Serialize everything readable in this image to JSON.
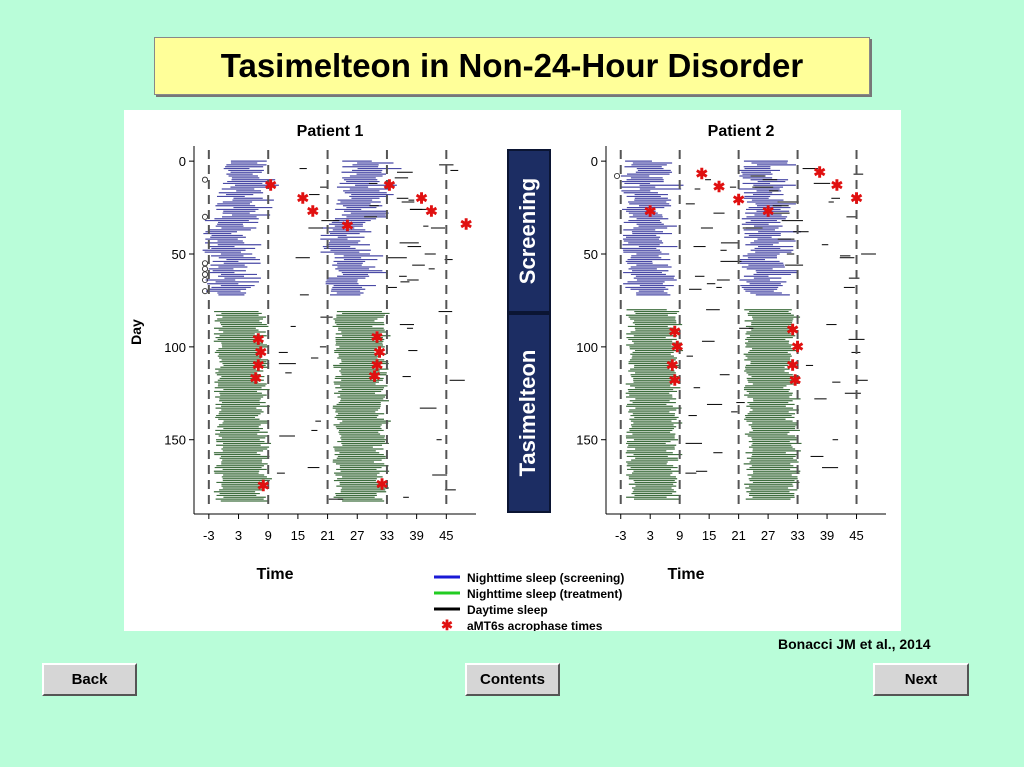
{
  "title": "Tasimelteon in Non-24-Hour Disorder",
  "citation": "Bonacci JM et al., 2014",
  "nav": {
    "back": "Back",
    "contents": "Contents",
    "next": "Next"
  },
  "colors": {
    "background": "#b9fdd9",
    "title_bg": "#ffff99",
    "screening": "#4a4aa6",
    "treatment": "#3e6e3e",
    "daytime": "#000000",
    "acrophase": "#e01010",
    "phase_label_bg": "#1c2d63"
  },
  "chart_data": [
    {
      "type": "scatter",
      "title": "Patient 1",
      "xlabel": "Time",
      "ylabel": "Day",
      "x_ticks": [
        "-3",
        "3",
        "9",
        "15",
        "21",
        "27",
        "33",
        "39",
        "45"
      ],
      "y_ticks": [
        "0",
        "50",
        "100",
        "150"
      ],
      "xlim": [
        -3,
        48
      ],
      "ylim": [
        0,
        185
      ],
      "screening_days": [
        0,
        72
      ],
      "treatment_days": [
        81,
        183
      ],
      "acrophase_points": [
        {
          "x": 9.5,
          "day": 13
        },
        {
          "x": 16,
          "day": 20
        },
        {
          "x": 18,
          "day": 27
        },
        {
          "x": 25,
          "day": 35
        },
        {
          "x": 33.5,
          "day": 13
        },
        {
          "x": 40,
          "day": 20
        },
        {
          "x": 42,
          "day": 27
        },
        {
          "x": 49,
          "day": 34
        },
        {
          "x": 7,
          "day": 96
        },
        {
          "x": 7.5,
          "day": 103
        },
        {
          "x": 7,
          "day": 110
        },
        {
          "x": 6.5,
          "day": 117
        },
        {
          "x": 8,
          "day": 175
        },
        {
          "x": 31,
          "day": 95
        },
        {
          "x": 31.5,
          "day": 103
        },
        {
          "x": 31,
          "day": 110
        },
        {
          "x": 30.5,
          "day": 116
        },
        {
          "x": 32,
          "day": 174
        }
      ]
    },
    {
      "type": "scatter",
      "title": "Patient 2",
      "xlabel": "Time",
      "ylabel": "",
      "x_ticks": [
        "-3",
        "3",
        "9",
        "15",
        "21",
        "27",
        "33",
        "39",
        "45"
      ],
      "y_ticks": [
        "0",
        "50",
        "100",
        "150"
      ],
      "xlim": [
        -3,
        48
      ],
      "ylim": [
        0,
        185
      ],
      "screening_days": [
        0,
        72
      ],
      "treatment_days": [
        80,
        182
      ],
      "acrophase_points": [
        {
          "x": 3,
          "day": 27
        },
        {
          "x": 13.5,
          "day": 7
        },
        {
          "x": 17,
          "day": 14
        },
        {
          "x": 21,
          "day": 21
        },
        {
          "x": 27,
          "day": 27
        },
        {
          "x": 37.5,
          "day": 6
        },
        {
          "x": 41,
          "day": 13
        },
        {
          "x": 45,
          "day": 20
        },
        {
          "x": 8,
          "day": 92
        },
        {
          "x": 8.5,
          "day": 100
        },
        {
          "x": 7.5,
          "day": 110
        },
        {
          "x": 8,
          "day": 118
        },
        {
          "x": 32,
          "day": 91
        },
        {
          "x": 33,
          "day": 100
        },
        {
          "x": 32,
          "day": 110
        },
        {
          "x": 32.5,
          "day": 118
        }
      ]
    }
  ],
  "phase_labels": {
    "screening": "Screening",
    "treatment": "Tasimelteon"
  },
  "legend": {
    "items": [
      {
        "label": "Nighttime sleep (screening)",
        "color": "#1a1ad6",
        "kind": "line"
      },
      {
        "label": "Nighttime sleep (treatment)",
        "color": "#22cc22",
        "kind": "line"
      },
      {
        "label": "Daytime sleep",
        "color": "#000000",
        "kind": "line"
      },
      {
        "label": "aMT6s acrophase times",
        "color": "#e01010",
        "kind": "star"
      }
    ]
  }
}
